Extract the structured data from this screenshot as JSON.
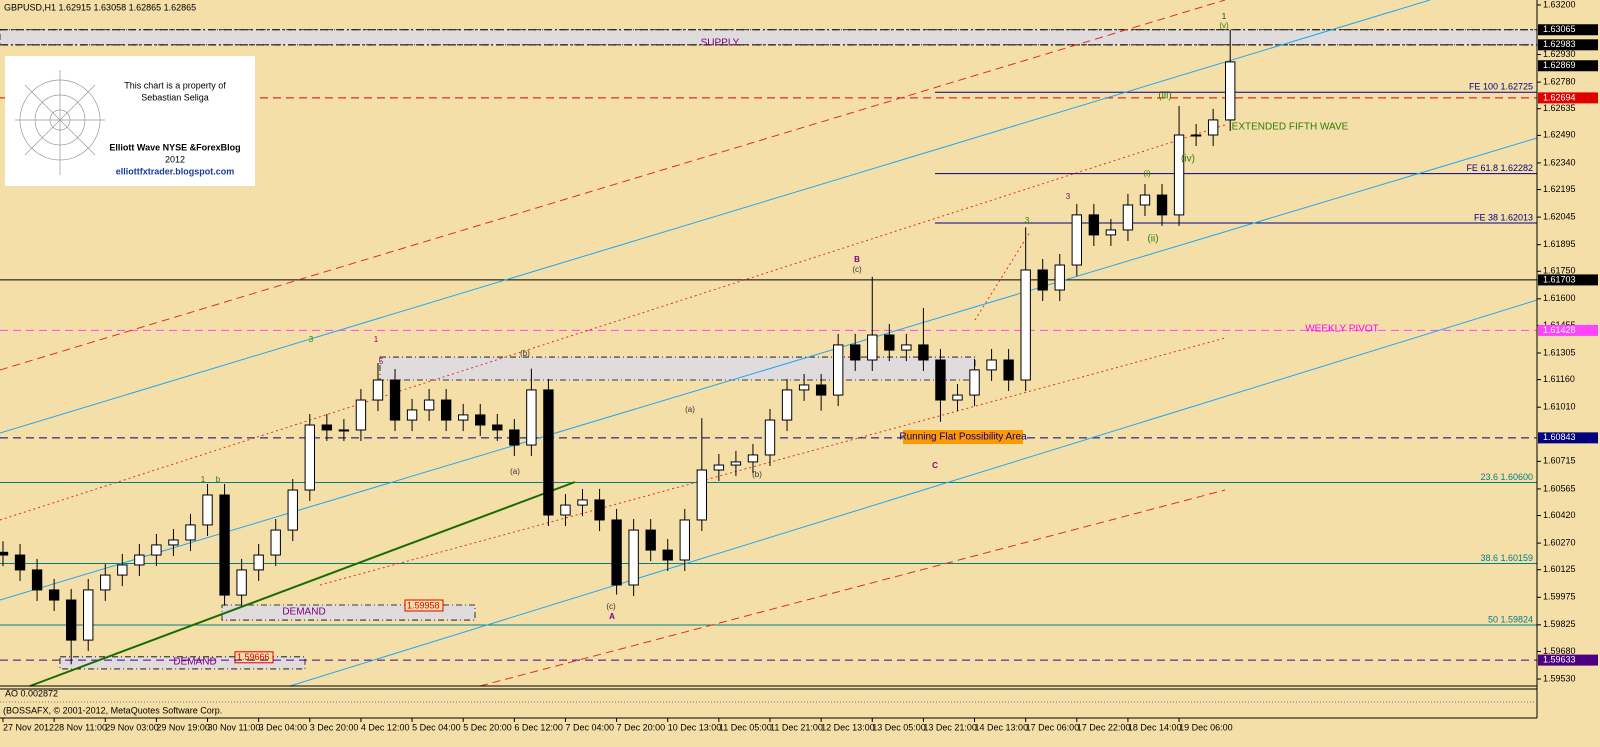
{
  "header": "GBPUSD,H1  1.62915 1.63058 1.62865 1.62865",
  "chart_data": {
    "type": "candlestick",
    "categories": [
      "27 Nov 2012",
      null,
      null,
      "28 Nov 11:00",
      null,
      null,
      "29 Nov 03:00",
      null,
      null,
      "29 Nov 19:00",
      null,
      null,
      "30 Nov 11:00",
      null,
      null,
      "3 Dec 04:00",
      null,
      null,
      "3 Dec 20:00",
      null,
      null,
      "4 Dec 12:00",
      null,
      null,
      "5 Dec 04:00",
      null,
      null,
      "5 Dec 20:00",
      null,
      null,
      "6 Dec 12:00",
      null,
      null,
      "7 Dec 04:00",
      null,
      null,
      "7 Dec 20:00",
      null,
      null,
      "10 Dec 13:00",
      null,
      null,
      "11 Dec 05:00",
      null,
      null,
      "11 Dec 21:00",
      null,
      null,
      "12 Dec 13:00",
      null,
      null,
      "13 Dec 05:00",
      null,
      null,
      "13 Dec 21:00",
      null,
      null,
      "14 Dec 13:00",
      null,
      null,
      "17 Dec 06:00",
      null,
      null,
      "17 Dec 22:00",
      null,
      null,
      "18 Dec 14:00",
      null,
      null,
      "19 Dec 06:00",
      null,
      null,
      null
    ],
    "open": [
      1.6022,
      1.60205,
      1.60124,
      1.60015,
      1.5996,
      1.59742,
      1.60015,
      1.60096,
      1.60151,
      1.60205,
      1.6026,
      1.60287,
      1.60369,
      1.60532,
      1.59987,
      1.60124,
      1.60205,
      1.60341,
      1.60559,
      1.60913,
      1.60886,
      1.60886,
      1.61049,
      1.61158,
      1.6094,
      1.60995,
      1.61049,
      1.6094,
      1.60968,
      1.60913,
      1.60886,
      1.60804,
      1.61104,
      1.60423,
      1.60477,
      1.60505,
      1.60396,
      1.60042,
      1.60341,
      1.60232,
      1.60178,
      1.60396,
      1.60668,
      1.60695,
      1.60712,
      1.6075,
      1.6094,
      1.61104,
      1.61131,
      1.61076,
      1.61349,
      1.61267,
      1.61403,
      1.61321,
      1.61349,
      1.61267,
      1.61049,
      1.61076,
      1.61213,
      1.61267,
      1.61158,
      1.61757,
      1.61648,
      1.61784,
      1.62057,
      1.61948,
      1.61975,
      1.62111,
      1.62165,
      1.62057,
      1.62492,
      1.62492,
      1.62574
    ],
    "high": [
      1.6028,
      1.60265,
      1.60184,
      1.60075,
      1.6002,
      1.60075,
      1.60156,
      1.60211,
      1.60265,
      1.6032,
      1.60347,
      1.60429,
      1.60592,
      1.60592,
      1.60184,
      1.60265,
      1.60401,
      1.60619,
      1.60973,
      1.60973,
      1.60946,
      1.61109,
      1.6125,
      1.61218,
      1.61055,
      1.61109,
      1.61109,
      1.61028,
      1.61028,
      1.60973,
      1.60946,
      1.6122,
      1.61164,
      1.60537,
      1.60565,
      1.60565,
      1.60456,
      1.60401,
      1.60401,
      1.60292,
      1.60456,
      1.6095,
      1.60755,
      1.60772,
      1.6081,
      1.61,
      1.61164,
      1.61191,
      1.61191,
      1.61409,
      1.61409,
      1.6172,
      1.61463,
      1.61409,
      1.6155,
      1.61327,
      1.61136,
      1.61273,
      1.61327,
      1.61327,
      1.6199,
      1.61817,
      1.61844,
      1.62117,
      1.62117,
      1.62035,
      1.62171,
      1.62225,
      1.62225,
      1.6265,
      1.62552,
      1.62634,
      1.63065
    ],
    "low": [
      1.60145,
      1.60064,
      1.59955,
      1.599,
      1.5961,
      1.59682,
      1.59955,
      1.60036,
      1.60091,
      1.60145,
      1.602,
      1.60227,
      1.60309,
      1.5993,
      1.59927,
      1.60064,
      1.60145,
      1.60281,
      1.60499,
      1.60826,
      1.60826,
      1.60826,
      1.60989,
      1.6088,
      1.6088,
      1.60935,
      1.6088,
      1.6088,
      1.60853,
      1.60826,
      1.60744,
      1.60744,
      1.60363,
      1.60363,
      1.60417,
      1.60336,
      1.5999,
      1.59982,
      1.60172,
      1.60118,
      1.60118,
      1.60336,
      1.60608,
      1.60635,
      1.60652,
      1.6069,
      1.6088,
      1.61044,
      1.60991,
      1.61016,
      1.61207,
      1.61207,
      1.61261,
      1.61261,
      1.61207,
      1.6093,
      1.60989,
      1.61016,
      1.61153,
      1.61098,
      1.61098,
      1.61588,
      1.61588,
      1.61724,
      1.61888,
      1.61888,
      1.61915,
      1.62051,
      1.61997,
      1.61997,
      1.62432,
      1.62432,
      1.62514
    ],
    "close": [
      1.60205,
      1.60124,
      1.60015,
      1.5996,
      1.59742,
      1.60015,
      1.60096,
      1.60151,
      1.60205,
      1.6026,
      1.60287,
      1.60369,
      1.60532,
      1.59987,
      1.60124,
      1.60205,
      1.60341,
      1.60559,
      1.60913,
      1.60886,
      1.60886,
      1.61049,
      1.61158,
      1.6094,
      1.60995,
      1.61049,
      1.6094,
      1.60968,
      1.60913,
      1.60886,
      1.60804,
      1.61104,
      1.60423,
      1.60477,
      1.60505,
      1.60396,
      1.60042,
      1.60341,
      1.60232,
      1.60178,
      1.60396,
      1.60668,
      1.60695,
      1.60712,
      1.6075,
      1.6094,
      1.61104,
      1.61131,
      1.61076,
      1.61349,
      1.61267,
      1.61403,
      1.61321,
      1.61349,
      1.61267,
      1.61049,
      1.61076,
      1.61213,
      1.61267,
      1.61158,
      1.61757,
      1.61648,
      1.61784,
      1.62057,
      1.61948,
      1.61975,
      1.62111,
      1.62165,
      1.62057,
      1.62492,
      1.62492,
      1.62574,
      1.6289
    ],
    "up_color": "#ffffff",
    "down_color": "#000000",
    "ylim": [
      1.59492,
      1.63227
    ],
    "yticks": [
      {
        "value": 1.632,
        "label": "1.63200"
      },
      {
        "value": 1.6293,
        "label": "1.62930"
      },
      {
        "value": 1.6278,
        "label": "1.62780"
      },
      1.62635,
      {
        "value": 1.6249,
        "label": "1.62490"
      },
      {
        "value": 1.6234,
        "label": "1.62340"
      },
      1.62195,
      1.62045,
      1.61895,
      {
        "value": 1.6175,
        "label": "1.61750"
      },
      {
        "value": 1.616,
        "label": "1.61600"
      },
      1.61455,
      1.61305,
      {
        "value": 1.6116,
        "label": "1.61160"
      },
      {
        "value": 1.6101,
        "label": "1.61010"
      },
      1.60715,
      1.60565,
      {
        "value": 1.6042,
        "label": "1.60420"
      },
      {
        "value": 1.6027,
        "label": "1.60270"
      },
      1.60125,
      1.59975,
      1.59825,
      {
        "value": 1.5968,
        "label": "1.59680"
      },
      {
        "value": 1.5953,
        "label": "1.59530"
      }
    ],
    "levels": [
      {
        "value": 1.63065,
        "color": "#000000",
        "style": "dashdot"
      },
      {
        "value": 1.62983,
        "color": "#000000",
        "style": "dashdot"
      },
      {
        "value": 1.62869,
        "color": "#000000",
        "style": "none"
      },
      {
        "value": 1.62694,
        "color": "#e00000",
        "style": "dashed"
      },
      {
        "value": 1.61703,
        "color": "#000000",
        "style": "solid"
      },
      {
        "value": 1.61428,
        "color": "#ff44ff",
        "style": "dashed"
      },
      {
        "value": 1.60843,
        "color": "#000080",
        "style": "dashed"
      },
      {
        "value": 1.59633,
        "color": "#4b0082",
        "style": "dashed"
      }
    ],
    "fib_levels": [
      {
        "value": 1.62725,
        "label": "FE 100 1.62725",
        "span": "partial",
        "color": "#000080"
      },
      {
        "value": 1.62282,
        "label": "FE 61.8 1.62282",
        "span": "partial",
        "color": "#000080"
      },
      {
        "value": 1.62013,
        "label": "FE 38 1.62013",
        "span": "partial",
        "color": "#000080"
      },
      {
        "value": 1.606,
        "label": "23.6 1.60600",
        "span": "full",
        "color": "#008080"
      },
      {
        "value": 1.60159,
        "label": "38.6 1.60159",
        "span": "full",
        "color": "#008080"
      },
      {
        "value": 1.59824,
        "label": "50 1.59824",
        "span": "full",
        "color": "#008080"
      }
    ],
    "zones": [
      {
        "top": 1.63065,
        "bottom": 1.62983
      },
      {
        "top": 1.61283,
        "bottom": 1.61158
      },
      {
        "top": 1.59933,
        "bottom": 1.59851,
        "label": "1.59958"
      },
      {
        "top": 1.59651,
        "bottom": 1.59585,
        "label": "1.59666"
      }
    ],
    "annotations": [
      {
        "text": "SUPPLY",
        "color": "#800080"
      },
      {
        "text": "EXTENDED FIFTH WAVE",
        "color": "#2e7d00"
      },
      {
        "text": "WEEKLY PIVOT",
        "color": "#ff00ff"
      },
      {
        "text": "Running Flat Possibility Area",
        "color": "#000080",
        "style": "box"
      },
      {
        "text": "DEMAND",
        "color": "#800080"
      },
      {
        "text": "DEMAND",
        "color": "#800080"
      },
      {
        "text": "B",
        "color": "#800080"
      },
      {
        "text": "(c)",
        "color": "#333333"
      },
      {
        "text": "A",
        "color": "#800080"
      },
      {
        "text": "(c)",
        "color": "#333333"
      },
      {
        "text": "C",
        "color": "#800080"
      },
      {
        "text": "(b)",
        "color": "#333333"
      },
      {
        "text": "(a)",
        "color": "#333333"
      },
      {
        "text": "(a)",
        "color": "#333333"
      },
      {
        "text": "(b)",
        "color": "#333333"
      },
      {
        "text": "3",
        "color": "#2e7d00"
      },
      {
        "text": "3",
        "color": "#800080"
      },
      {
        "text": "(iii)",
        "color": "#2e7d00"
      },
      {
        "text": "(iv)",
        "color": "#2e7d00"
      },
      {
        "text": "(v)",
        "color": "#2e7d00"
      },
      {
        "text": "1",
        "color": "#333333"
      },
      {
        "text": "(i)",
        "color": "#2e7d00"
      },
      {
        "text": "(ii)",
        "color": "#2e7d00"
      },
      {
        "text": "1",
        "color": "#800080"
      },
      {
        "text": "5",
        "color": "#800080"
      },
      {
        "text": "3",
        "color": "#2e7d00"
      },
      {
        "text": "1",
        "color": "#2e7d00"
      },
      {
        "text": "b",
        "color": "#2e7d00"
      }
    ],
    "watermark": [
      "This chart is a property of",
      "Sebastian Seliga",
      "Elliott Wave NYSE &ForexBlog",
      "2012",
      "elliottfxtrader.blogspot.com"
    ],
    "indicator_label": "AO 0.002872",
    "footer": "(BOSSAFX, © 2001-2012, MetaQuotes Software Corp."
  }
}
